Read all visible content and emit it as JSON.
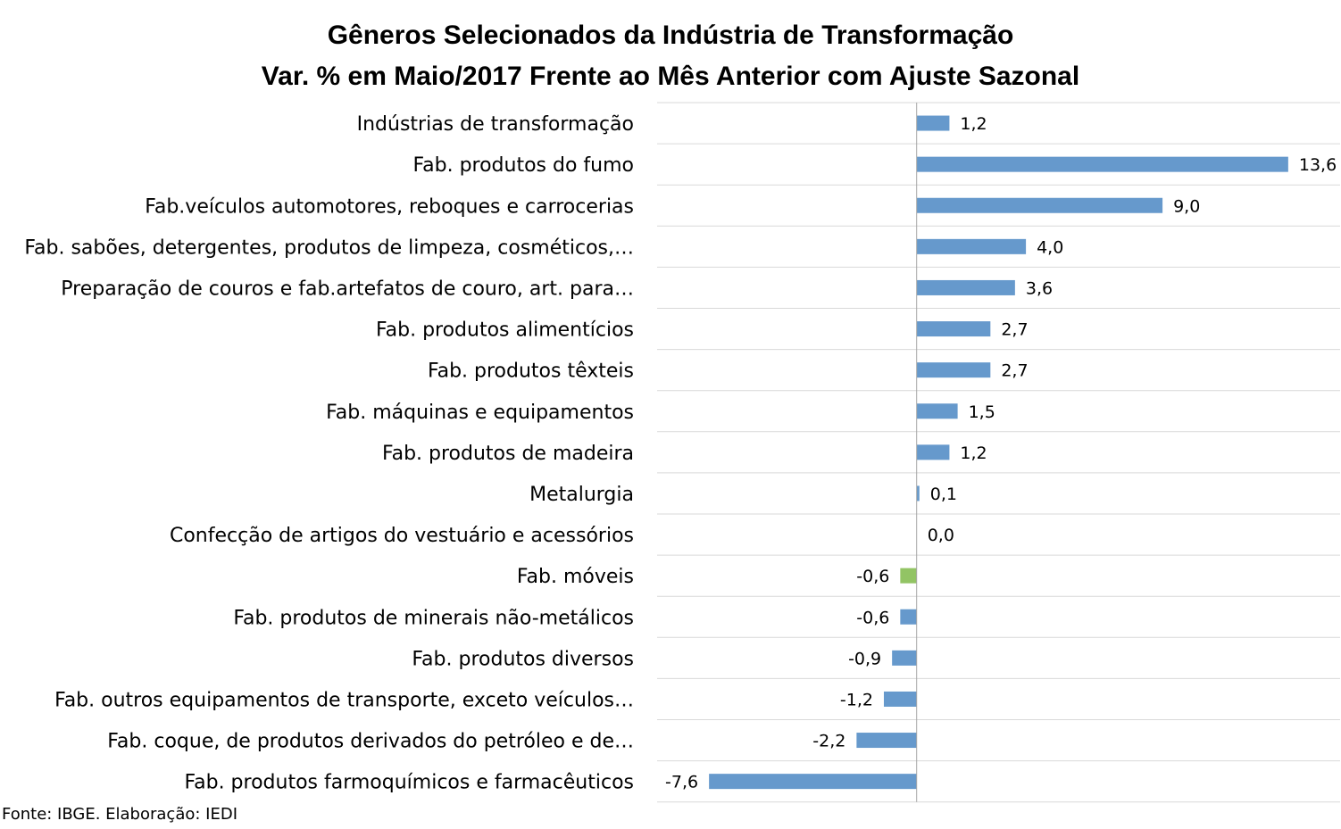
{
  "chart_data": {
    "type": "bar",
    "orientation": "horizontal",
    "title": [
      "Gêneros Selecionados da Indústria de Transformação",
      "Var. % em Maio/2017 Frente ao Mês Anterior com Ajuste Sazonal"
    ],
    "categories": [
      "Indústrias de transformação",
      "Fab. produtos do fumo",
      "Fab.veículos automotores, reboques e carrocerias",
      "Fab. sabões, detergentes, produtos de limpeza, cosméticos,…",
      "Preparação de couros e fab.artefatos de couro, art. para…",
      "Fab. produtos alimentícios",
      "Fab. produtos têxteis",
      "Fab. máquinas e equipamentos",
      "Fab. produtos de madeira",
      "Metalurgia",
      "Confecção de artigos do vestuário e acessórios",
      "Fab. móveis",
      "Fab. produtos de minerais não-metálicos",
      "Fab. produtos diversos",
      "Fab. outros equipamentos de transporte, exceto veículos…",
      "Fab. coque, de produtos derivados do petróleo e de…",
      "Fab. produtos farmoquímicos e farmacêuticos"
    ],
    "values": [
      1.2,
      13.6,
      9.0,
      4.0,
      3.6,
      2.7,
      2.7,
      1.5,
      1.2,
      0.1,
      0.0,
      -0.6,
      -0.6,
      -0.9,
      -1.2,
      -2.2,
      -7.6
    ],
    "value_labels": [
      "1,2",
      "13,6",
      "9,0",
      "4,0",
      "3,6",
      "2,7",
      "2,7",
      "1,5",
      "1,2",
      "0,1",
      "0,0",
      "-0,6",
      "-0,6",
      "-0,9",
      "-1,2",
      "-2,2",
      "-7,6"
    ],
    "xlim": [
      -9.5,
      15.5
    ],
    "grid": "horizontal lines between categories",
    "legend": "none",
    "colors": {
      "default_bar": "#6699CC",
      "highlight_bar": "#92C464",
      "axis": "#A6A6A6",
      "grid": "#D9D9D9"
    },
    "highlighted_category": "Fab. móveis"
  },
  "source_note": "Fonte: IBGE. Elaboração: IEDI"
}
